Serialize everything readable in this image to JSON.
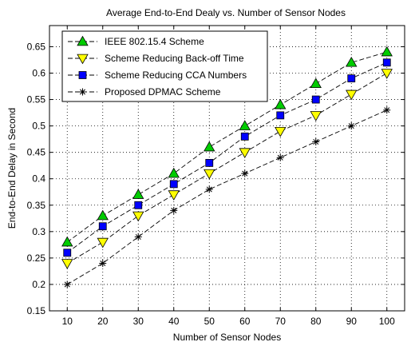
{
  "chart_data": {
    "type": "line",
    "title": "Average End-to-End Dealy vs. Number of Sensor Nodes",
    "xlabel": "Number of Sensor Nodes",
    "ylabel": "End-to-End Delay in Second",
    "x": [
      10,
      20,
      30,
      40,
      50,
      60,
      70,
      80,
      90,
      100
    ],
    "xlim": [
      5,
      105
    ],
    "ylim": [
      0.15,
      0.69
    ],
    "xticks": [
      "10",
      "20",
      "30",
      "40",
      "50",
      "60",
      "70",
      "80",
      "90",
      "100"
    ],
    "yticks": [
      "0.15",
      "0.2",
      "0.25",
      "0.3",
      "0.35",
      "0.4",
      "0.45",
      "0.5",
      "0.55",
      "0.6",
      "0.65"
    ],
    "grid": true,
    "legend_position": "top-left",
    "series": [
      {
        "name": "IEEE 802.15.4 Scheme",
        "marker": "triangle-up",
        "color": "#00cc00",
        "values": [
          0.28,
          0.33,
          0.37,
          0.41,
          0.46,
          0.5,
          0.54,
          0.58,
          0.62,
          0.64
        ]
      },
      {
        "name": "Scheme Reducing Back-off Time",
        "marker": "triangle-down",
        "color": "#ffff00",
        "values": [
          0.24,
          0.28,
          0.33,
          0.37,
          0.41,
          0.45,
          0.49,
          0.52,
          0.56,
          0.6
        ]
      },
      {
        "name": "Scheme Reducing CCA Numbers",
        "marker": "square",
        "color": "#0000ff",
        "values": [
          0.26,
          0.31,
          0.35,
          0.39,
          0.43,
          0.48,
          0.52,
          0.55,
          0.59,
          0.62
        ]
      },
      {
        "name": "Proposed DPMAC Scheme",
        "marker": "star",
        "color": "#000000",
        "values": [
          0.2,
          0.24,
          0.29,
          0.34,
          0.38,
          0.41,
          0.44,
          0.47,
          0.5,
          0.53
        ]
      }
    ]
  }
}
